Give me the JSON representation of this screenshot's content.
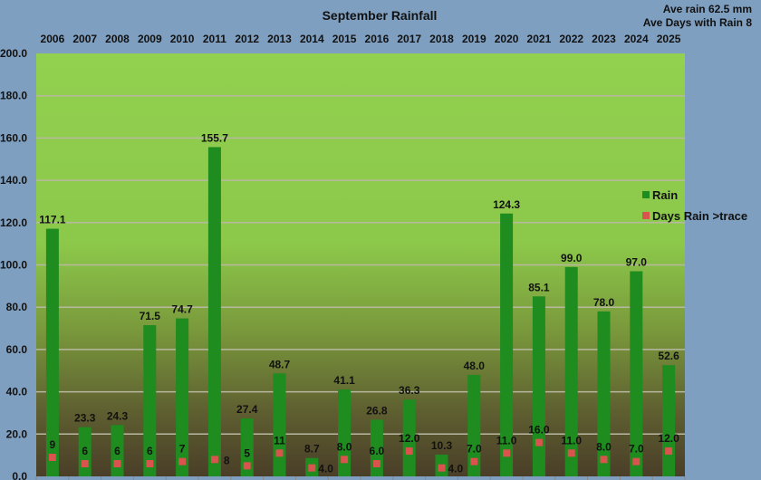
{
  "chart_data": {
    "type": "bar",
    "title": "September Rainfall",
    "annotations": [
      "Ave rain 62.5 mm",
      "Ave Days with Rain 8"
    ],
    "categories": [
      "2006",
      "2007",
      "2008",
      "2009",
      "2010",
      "2011",
      "2012",
      "2013",
      "2014",
      "2015",
      "2016",
      "2017",
      "2018",
      "2019",
      "2020",
      "2021",
      "2022",
      "2023",
      "2024",
      "2025"
    ],
    "series": [
      {
        "name": "Rain",
        "kind": "bar",
        "color": "#1e8c1e",
        "values": [
          117.1,
          23.3,
          24.3,
          71.5,
          74.7,
          155.7,
          27.4,
          48.7,
          8.7,
          41.1,
          26.8,
          36.3,
          10.3,
          48.0,
          124.3,
          85.1,
          99.0,
          78.0,
          97.0,
          52.6
        ],
        "labels": [
          "117.1",
          "23.3",
          "24.3",
          "71.5",
          "74.7",
          "155.7",
          "27.4",
          "48.7",
          "8.7",
          "41.1",
          "26.8",
          "36.3",
          "10.3",
          "48.0",
          "124.3",
          "85.1",
          "99.0",
          "78.0",
          "97.0",
          "52.6"
        ]
      },
      {
        "name": "Days Rain >trace",
        "kind": "marker",
        "color": "#d9534f",
        "values": [
          9,
          6,
          6,
          6,
          7,
          8,
          5,
          11,
          4,
          8,
          6,
          12,
          4,
          7,
          11,
          16,
          11,
          8,
          7,
          12
        ],
        "labels": [
          "9",
          "6",
          "6",
          "6",
          "7",
          "8",
          "5",
          "11",
          "4.0",
          "8.0",
          "6.0",
          "12.0",
          "4.0",
          "7.0",
          "11.0",
          "16.0",
          "11.0",
          "8.0",
          "7.0",
          "12.0"
        ]
      }
    ],
    "yticks": [
      "0.0",
      "20.0",
      "40.0",
      "60.0",
      "80.0",
      "100.0",
      "120.0",
      "140.0",
      "160.0",
      "180.0",
      "200.0"
    ],
    "ylim": [
      0,
      200
    ],
    "xaxis_position": "top",
    "grid": true,
    "legend": "right"
  }
}
